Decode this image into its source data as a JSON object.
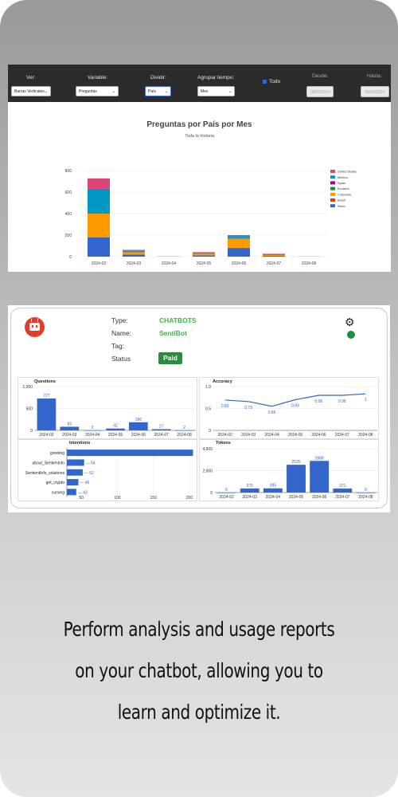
{
  "filters": {
    "ver_label": "Ver:",
    "ver_value": "Barras Verticales",
    "variable_label": "Variable:",
    "variable_value": "Preguntas",
    "dividir_label": "Dividir:",
    "dividir_value": "País",
    "agrupar_label": "Agrupar tiempo:",
    "agrupar_value": "Mes",
    "todo_label": "Todo",
    "desde_label": "Desde:",
    "desde_value": "08/03/2024",
    "hasta_label": "Hasta:",
    "hasta_value": "08/03/2024"
  },
  "chart_data": [
    {
      "type": "bar",
      "stacked": true,
      "title": "Preguntas por País por Mes",
      "subtitle": "Toda la historia",
      "categories": [
        "2024-02",
        "2024-03",
        "2024-04",
        "2024-05",
        "2024-06",
        "2024-07",
        "2024-08"
      ],
      "ylim": [
        0,
        800
      ],
      "yticks": [
        0,
        200,
        400,
        600,
        800
      ],
      "legend_position": "right",
      "series": [
        {
          "name": "None",
          "color": "#3366cc",
          "values": [
            180,
            20,
            1,
            12,
            80,
            8,
            1
          ]
        },
        {
          "name": "Brazil",
          "color": "#dc3912",
          "values": [
            0,
            0,
            0,
            0,
            2,
            0,
            0
          ]
        },
        {
          "name": "Colombia",
          "color": "#ff9900",
          "values": [
            220,
            20,
            0,
            15,
            85,
            7,
            1
          ]
        },
        {
          "name": "Ecuador",
          "color": "#109618",
          "values": [
            0,
            3,
            0,
            2,
            3,
            2,
            0
          ]
        },
        {
          "name": "Spain",
          "color": "#990099",
          "values": [
            0,
            2,
            0,
            1,
            2,
            1,
            0
          ]
        },
        {
          "name": "Mexico",
          "color": "#0099c6",
          "values": [
            230,
            12,
            1,
            8,
            20,
            5,
            0
          ]
        },
        {
          "name": "United States",
          "color": "#dd4477",
          "values": [
            97,
            6,
            0,
            4,
            8,
            4,
            0
          ]
        }
      ]
    },
    {
      "type": "bar",
      "title": "Questions",
      "categories": [
        "2024-02",
        "2024-03",
        "2024-04",
        "2024-05",
        "2024-06",
        "2024-07",
        "2024-08"
      ],
      "values": [
        727,
        83,
        2,
        42,
        186,
        27,
        2
      ],
      "ylim": [
        0,
        1000
      ],
      "yticks": [
        "0",
        "500",
        "1,000"
      ]
    },
    {
      "type": "line",
      "title": "Accuracy",
      "categories": [
        "2024-02",
        "2024-03",
        "2024-04",
        "2024-05",
        "2024-06",
        "2024-07",
        "2024-08"
      ],
      "values": [
        0.83,
        0.79,
        0.66,
        0.84,
        0.96,
        0.96,
        1
      ],
      "labels": [
        "0.83",
        "0.79",
        "0.66",
        "0.84",
        "0.96",
        "0.96",
        "1"
      ],
      "ylim": [
        0,
        1.2
      ],
      "yticks": [
        "0",
        "0.5",
        "1.0"
      ]
    },
    {
      "type": "bar",
      "orientation": "horizontal",
      "title": "Intentions",
      "categories": [
        "greeting",
        "about_SentienInfo",
        "SentientInfo_solutions",
        "get_crypto",
        "cursing"
      ],
      "values": [
        205,
        54,
        52,
        46,
        43
      ],
      "labels": [
        "",
        "54",
        "52",
        "46",
        "43"
      ],
      "xlim": [
        30,
        210
      ],
      "xticks": [
        "50",
        "100",
        "150",
        "200"
      ]
    },
    {
      "type": "bar",
      "title": "Tokens",
      "categories": [
        "2024-02",
        "2024-03",
        "2024-04",
        "2024-05",
        "2024-06",
        "2024-07",
        "2024-08"
      ],
      "values": [
        0,
        375,
        385,
        2535,
        2888,
        371,
        0
      ],
      "ylim": [
        0,
        4000
      ],
      "yticks": [
        "0",
        "2,000",
        "4,000"
      ]
    }
  ],
  "bot": {
    "type_label": "Type:",
    "type_value": "CHATBOTS",
    "name_label": "Name:",
    "name_value": "SentiBot",
    "tag_label": "Tag:",
    "status_label": "Status",
    "status_value": "Paid"
  },
  "caption": {
    "line1": "Perform analysis and usage reports",
    "line2": "on your chatbot, allowing you to",
    "line3": "learn and optimize it."
  },
  "icons": {
    "settings": "gear-icon",
    "status": "status-dot-icon",
    "logo": "robot-icon"
  }
}
